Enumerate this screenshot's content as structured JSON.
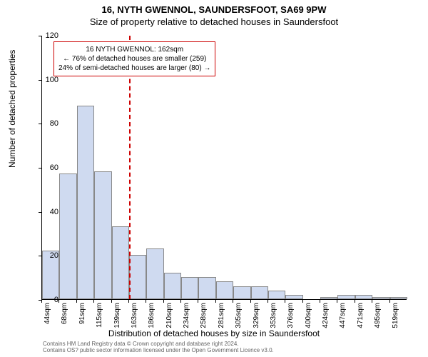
{
  "title_line1": "16, NYTH GWENNOL, SAUNDERSFOOT, SA69 9PW",
  "title_line2": "Size of property relative to detached houses in Saundersfoot",
  "y_axis_label": "Number of detached properties",
  "x_axis_label": "Distribution of detached houses by size in Saundersfoot",
  "chart": {
    "type": "histogram",
    "y_max": 120,
    "y_ticks": [
      0,
      20,
      40,
      60,
      80,
      100,
      120
    ],
    "x_tick_labels": [
      "44sqm",
      "68sqm",
      "91sqm",
      "115sqm",
      "139sqm",
      "163sqm",
      "186sqm",
      "210sqm",
      "234sqm",
      "258sqm",
      "281sqm",
      "305sqm",
      "329sqm",
      "353sqm",
      "376sqm",
      "400sqm",
      "424sqm",
      "447sqm",
      "471sqm",
      "495sqm",
      "519sqm"
    ],
    "bar_values": [
      22,
      57,
      88,
      58,
      33,
      20,
      23,
      12,
      10,
      10,
      8,
      6,
      6,
      4,
      2,
      0,
      1,
      2,
      2,
      1,
      1
    ],
    "bar_fill_color": "#cfdaf0",
    "bar_border_color": "#888888",
    "background_color": "#ffffff",
    "axis_color": "#000000",
    "marker_line_color": "#cc0000",
    "marker_line_position_index": 5,
    "label_fontsize": 12,
    "tick_fontsize": 10,
    "title_fontsize": 13
  },
  "annotation": {
    "line1": "16 NYTH GWENNOL: 162sqm",
    "line2": "← 76% of detached houses are smaller (259)",
    "line3": "24% of semi-detached houses are larger (80) →",
    "border_color": "#cc0000",
    "background_color": "#ffffff",
    "fontsize": 10
  },
  "footer": {
    "line1": "Contains HM Land Registry data © Crown copyright and database right 2024.",
    "line2": "Contains OS? public sector information licensed under the Open Government Licence v3.0."
  }
}
